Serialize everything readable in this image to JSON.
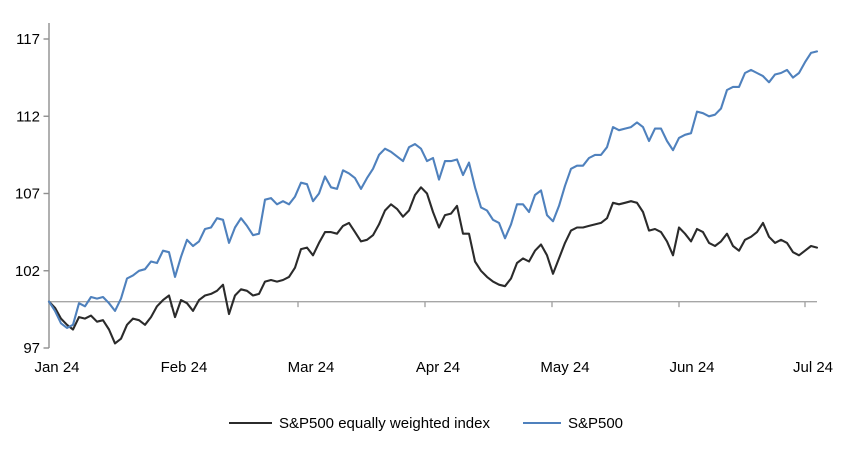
{
  "chart_data": {
    "type": "line",
    "title": "",
    "grid": false,
    "legend_position": "bottom",
    "x_axis": {
      "tick_labels": [
        "Jan 24",
        "Feb 24",
        "Mar 24",
        "Apr 24",
        "May 24",
        "Jun 24",
        "Jul 24"
      ]
    },
    "y_axis": {
      "ticks": [
        117,
        112,
        107,
        102,
        97
      ],
      "min": 97,
      "max": 117
    },
    "baseline_value": 100,
    "colors": {
      "equal_weight_line": "#2b2b2b",
      "sp500_line": "#4f81bd",
      "baseline": "#a6a6a6",
      "axis": "#8f8f8f",
      "text": "#000000"
    },
    "series": [
      {
        "name": "S&P500 equally weighted index",
        "color": "#2b2b2b",
        "values": [
          100.0,
          99.6,
          98.9,
          98.5,
          98.2,
          99.0,
          98.9,
          99.1,
          98.7,
          98.8,
          98.2,
          97.3,
          97.6,
          98.5,
          98.9,
          98.8,
          98.5,
          99.0,
          99.7,
          100.1,
          100.4,
          99.0,
          100.1,
          99.9,
          99.4,
          100.1,
          100.4,
          100.5,
          100.7,
          101.1,
          99.2,
          100.4,
          100.8,
          100.7,
          100.4,
          100.5,
          101.3,
          101.4,
          101.3,
          101.4,
          101.6,
          102.2,
          103.4,
          103.5,
          103.0,
          103.8,
          104.5,
          104.5,
          104.4,
          104.9,
          105.1,
          104.5,
          103.9,
          104.0,
          104.3,
          105.0,
          105.9,
          106.3,
          106.0,
          105.5,
          105.9,
          106.9,
          107.4,
          107.0,
          105.8,
          104.8,
          105.6,
          105.7,
          106.2,
          104.4,
          104.4,
          102.6,
          102.0,
          101.6,
          101.3,
          101.1,
          101.0,
          101.5,
          102.5,
          102.8,
          102.6,
          103.3,
          103.7,
          103.0,
          101.8,
          102.8,
          103.8,
          104.6,
          104.8,
          104.8,
          104.9,
          105.0,
          105.1,
          105.4,
          106.4,
          106.3,
          106.4,
          106.5,
          106.4,
          105.8,
          104.6,
          104.7,
          104.5,
          103.9,
          103.0,
          104.8,
          104.4,
          103.9,
          104.7,
          104.5,
          103.8,
          103.6,
          103.9,
          104.4,
          103.6,
          103.3,
          104.0,
          104.2,
          104.5,
          105.1,
          104.2,
          103.8,
          104.0,
          103.8,
          103.2,
          103.0,
          103.3,
          103.6,
          103.5
        ]
      },
      {
        "name": "S&P500",
        "color": "#4f81bd",
        "values": [
          100.0,
          99.4,
          98.6,
          98.3,
          98.5,
          99.9,
          99.7,
          100.3,
          100.2,
          100.3,
          99.9,
          99.4,
          100.2,
          101.5,
          101.7,
          102.0,
          102.1,
          102.6,
          102.5,
          103.3,
          103.2,
          101.6,
          102.9,
          104.0,
          103.6,
          103.9,
          104.7,
          104.8,
          105.4,
          105.3,
          103.8,
          104.8,
          105.4,
          104.9,
          104.3,
          104.4,
          106.6,
          106.7,
          106.3,
          106.5,
          106.3,
          106.8,
          107.7,
          107.6,
          106.5,
          107.0,
          108.1,
          107.4,
          107.3,
          108.5,
          108.3,
          108.0,
          107.3,
          108.0,
          108.6,
          109.5,
          109.9,
          109.7,
          109.4,
          109.1,
          110.0,
          110.2,
          109.9,
          109.1,
          109.3,
          107.9,
          109.1,
          109.1,
          109.2,
          108.2,
          109.0,
          107.4,
          106.1,
          105.9,
          105.3,
          105.1,
          104.1,
          105.0,
          106.3,
          106.3,
          105.8,
          106.9,
          107.2,
          105.6,
          105.2,
          106.2,
          107.5,
          108.6,
          108.8,
          108.8,
          109.3,
          109.5,
          109.5,
          110.0,
          111.3,
          111.1,
          111.2,
          111.3,
          111.6,
          111.3,
          110.4,
          111.2,
          111.2,
          110.4,
          109.8,
          110.6,
          110.8,
          110.9,
          112.3,
          112.2,
          112.0,
          112.1,
          112.5,
          113.7,
          113.9,
          113.9,
          114.8,
          115.0,
          114.8,
          114.6,
          114.2,
          114.7,
          114.8,
          115.0,
          114.5,
          114.8,
          115.5,
          116.1,
          116.2
        ]
      }
    ]
  },
  "legend": {
    "items": [
      {
        "label": "S&P500 equally weighted index"
      },
      {
        "label": "S&P500"
      }
    ]
  }
}
